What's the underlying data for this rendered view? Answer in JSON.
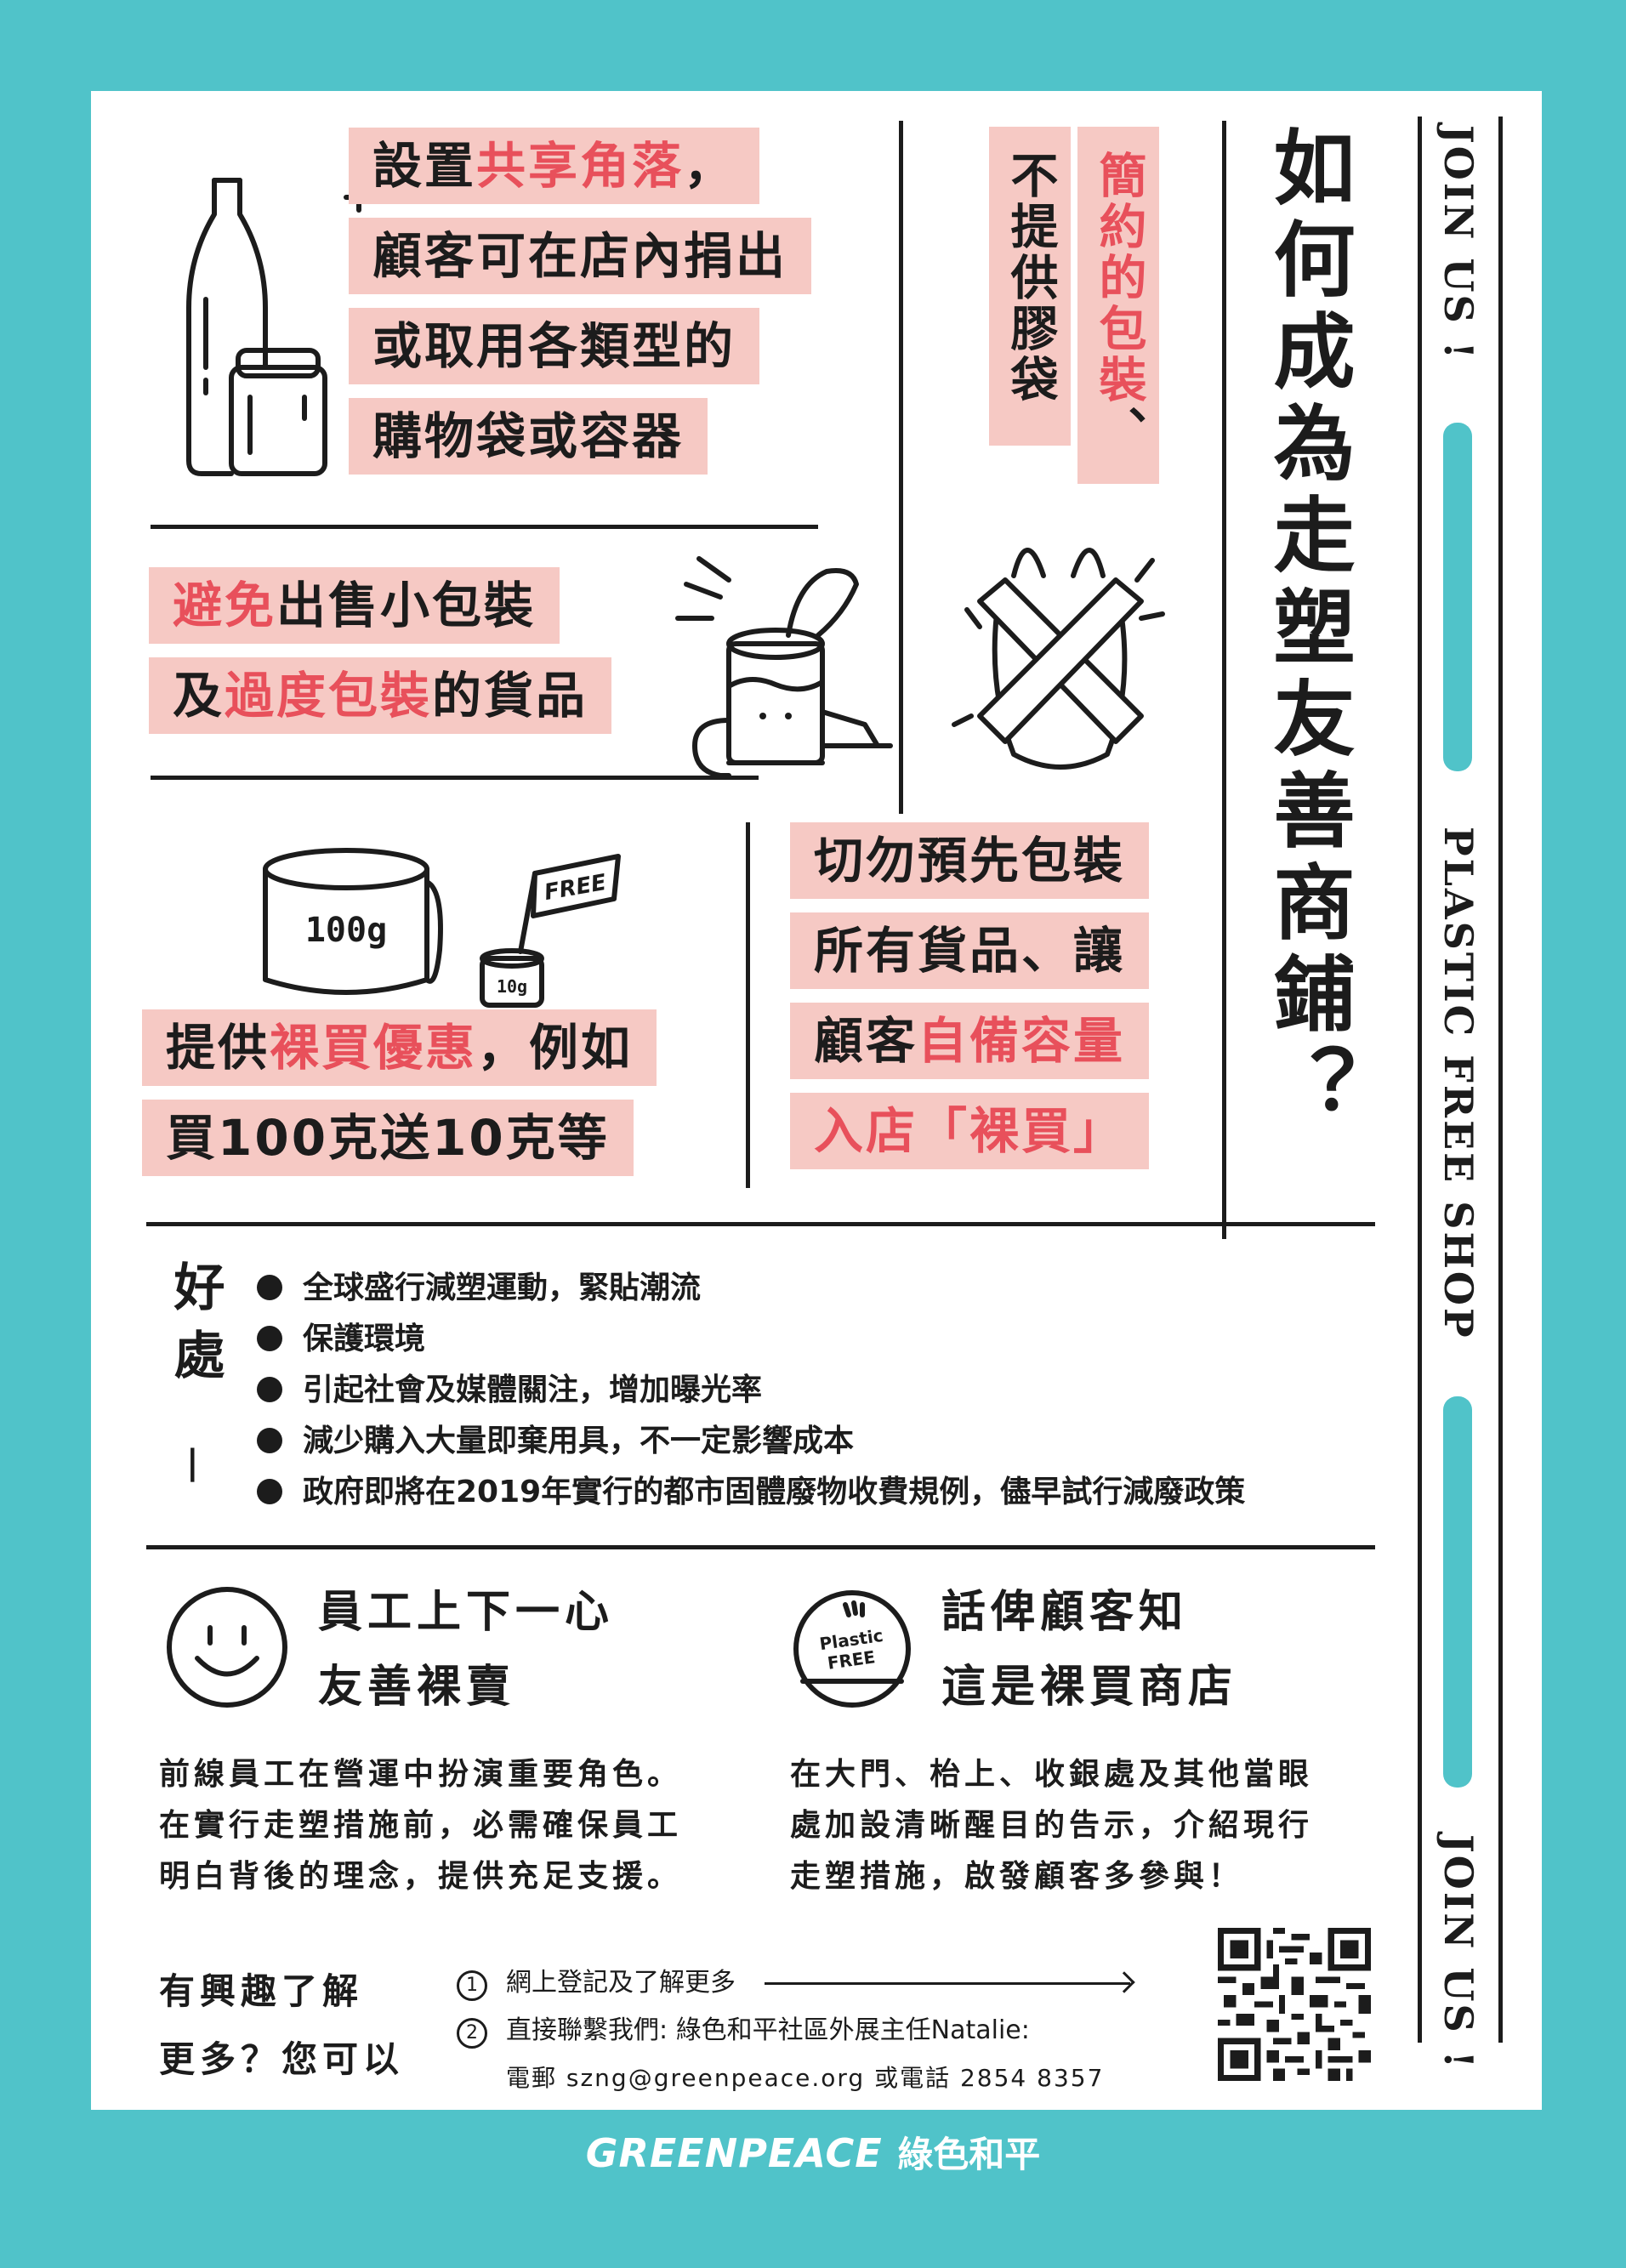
{
  "title": {
    "main": "如何成為走塑友善商鋪",
    "qmark": "？"
  },
  "side": {
    "join_top": "JOIN US !",
    "shop": "PLASTIC FREE SHOP",
    "join_bottom": "JOIN US !"
  },
  "tip1": {
    "line1a": "設置",
    "line1b": "共享角落",
    "line1c": "，",
    "line2": "顧客可在店內捐出",
    "line3": "或取用各類型的",
    "line4": "購物袋或容器"
  },
  "tip2": {
    "col_pink_a": "簡約的包裝",
    "col_pink_b": "、",
    "col_dark": "不提供膠袋"
  },
  "tip3": {
    "line1a": "避免",
    "line1b": "出售小包裝",
    "line2a": "及",
    "line2b": "過度包裝",
    "line2c": "的貨品"
  },
  "tip4": {
    "line1a": "提供",
    "line1b": "裸買優惠",
    "line1c": "，例如",
    "line2": "買100克送10克等"
  },
  "tip5": {
    "line1": "切勿預先包裝",
    "line2": "所有貨品、讓",
    "line3a": "顧客",
    "line3b": "自備容量",
    "line4": "入店「裸買」"
  },
  "illustrations": {
    "can_big": "100g",
    "can_small": "10g",
    "flag": "FREE",
    "sign_top": "Plastic",
    "sign_bottom": "FREE"
  },
  "benefits": {
    "heading": "好處",
    "dash": "|",
    "items": [
      "全球盛行減塑運動，緊貼潮流",
      "保護環境",
      "引起社會及媒體關注，增加曝光率",
      "減少購入大量即棄用具，不一定影響成本",
      "政府即將在2019年實行的都市固體廢物收費規例，儘早試行減廢政策"
    ]
  },
  "staff": {
    "title1": "員工上下一心",
    "title2": "友善裸賣",
    "body": [
      "前線員工在營運中扮演重要角色。",
      "在實行走塑措施前，必需確保員工",
      "明白背後的理念，提供充足支援。"
    ]
  },
  "customers": {
    "title1": "話俾顧客知",
    "title2": "這是裸買商店",
    "body": [
      "在大門、枱上、收銀處及其他當眼",
      "處加設清晰醒目的告示，介紹現行",
      "走塑措施，啟發顧客多參與！"
    ]
  },
  "contact": {
    "lead1": "有興趣了解",
    "lead2": "更多？您可以",
    "num1": "1",
    "num2": "2",
    "item1": "網上登記及了解更多",
    "item2": "直接聯繫我們: 綠色和平社區外展主任Natalie:",
    "item3": "電郵 szng@greenpeace.org 或電話 2854 8357"
  },
  "footer": {
    "brand": "GREENPEACE",
    "brand_zh": "綠色和平"
  },
  "colors": {
    "background": "#50c3c9",
    "highlight": "#f6c9c4",
    "accent": "#e8505b",
    "ink": "#1c1c1c"
  }
}
